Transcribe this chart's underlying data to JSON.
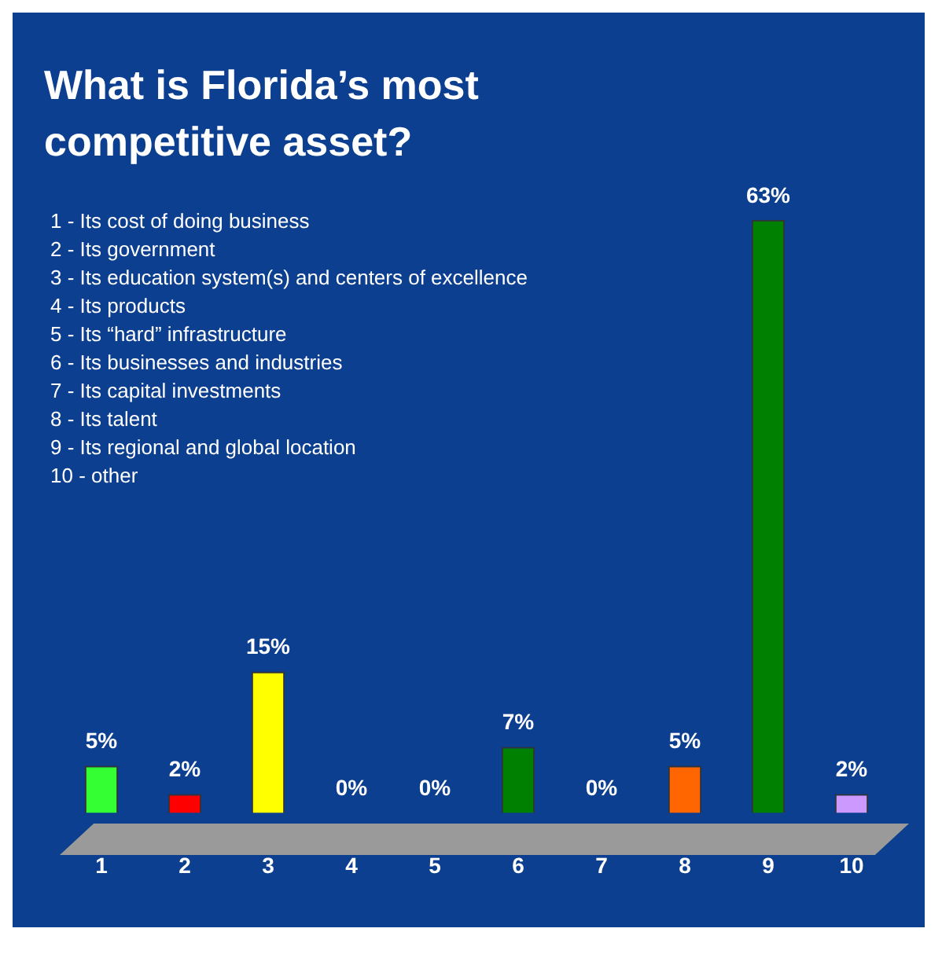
{
  "chart_data": {
    "type": "bar",
    "title": "What is Florida’s most competitive asset?",
    "categories": [
      "1",
      "2",
      "3",
      "4",
      "5",
      "6",
      "7",
      "8",
      "9",
      "10"
    ],
    "values": [
      5,
      2,
      15,
      0,
      0,
      7,
      0,
      5,
      63,
      2
    ],
    "colors": [
      "#33ff33",
      "#ff0000",
      "#ffff00",
      "#33cccc",
      "#808000",
      "#008000",
      "#99ccff",
      "#ff6600",
      "#008000",
      "#cc99ff"
    ],
    "value_labels": [
      "5%",
      "2%",
      "15%",
      "0%",
      "0%",
      "7%",
      "0%",
      "5%",
      "63%",
      "2%"
    ],
    "tick_labels": "x",
    "grid": false,
    "legend": false,
    "annotations": [
      "1 - Its cost of doing business",
      "2 - Its government",
      "3 - Its education system(s) and centers of excellence",
      "4 - Its products",
      "5 - Its “hard” infrastructure",
      "6 - Its businesses and industries",
      "7 - Its capital investments",
      "8 - Its talent",
      "9 - Its regional and global location",
      "10 - other"
    ]
  }
}
